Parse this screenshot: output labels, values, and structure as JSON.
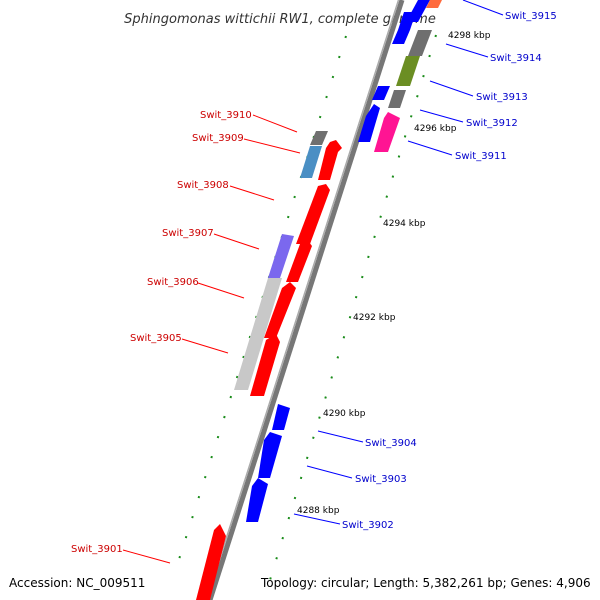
{
  "title": "Sphingomonas wittichii RW1, complete genome",
  "accession": "Accession: NC_009511",
  "topology": "Topology: circular; Length: 5,382,261 bp; Genes: 4,906",
  "colors": {
    "forward": "#ff0000",
    "reverse": "#0000ff",
    "backbone": "#808080",
    "tick": "#008000",
    "forward_label": "#cc0000",
    "reverse_label": "#0000cc"
  },
  "kbp_labels": [
    {
      "text": "4298 kbp"
    },
    {
      "text": "4296 kbp"
    },
    {
      "text": "4294 kbp"
    },
    {
      "text": "4292 kbp"
    },
    {
      "text": "4290 kbp"
    },
    {
      "text": "4288 kbp"
    }
  ],
  "genes": [
    {
      "label": "Swit_3915",
      "strand": "reverse",
      "color": "#0000ff"
    },
    {
      "label": "Swit_3914",
      "strand": "reverse",
      "color": "#0000ff"
    },
    {
      "label": "Swit_3913",
      "strand": "reverse",
      "color": "#0000ff"
    },
    {
      "label": "Swit_3912",
      "strand": "reverse",
      "color": "#0000ff"
    },
    {
      "label": "Swit_3911",
      "strand": "reverse",
      "color": "#ff1493"
    },
    {
      "label": "Swit_3910",
      "strand": "forward",
      "color": "#808080"
    },
    {
      "label": "Swit_3909",
      "strand": "forward",
      "color": "#4682b4"
    },
    {
      "label": "Swit_3908",
      "strand": "forward",
      "color": "#ff0000"
    },
    {
      "label": "Swit_3907",
      "strand": "forward",
      "color": "#7b68ee"
    },
    {
      "label": "Swit_3906",
      "strand": "forward",
      "color": "#c0c0c0"
    },
    {
      "label": "Swit_3905",
      "strand": "forward",
      "color": "#ff0000"
    },
    {
      "label": "Swit_3904",
      "strand": "reverse",
      "color": "#0000ff"
    },
    {
      "label": "Swit_3903",
      "strand": "reverse",
      "color": "#0000ff"
    },
    {
      "label": "Swit_3902",
      "strand": "reverse",
      "color": "#0000ff"
    },
    {
      "label": "Swit_3901",
      "strand": "forward",
      "color": "#ff0000"
    }
  ]
}
